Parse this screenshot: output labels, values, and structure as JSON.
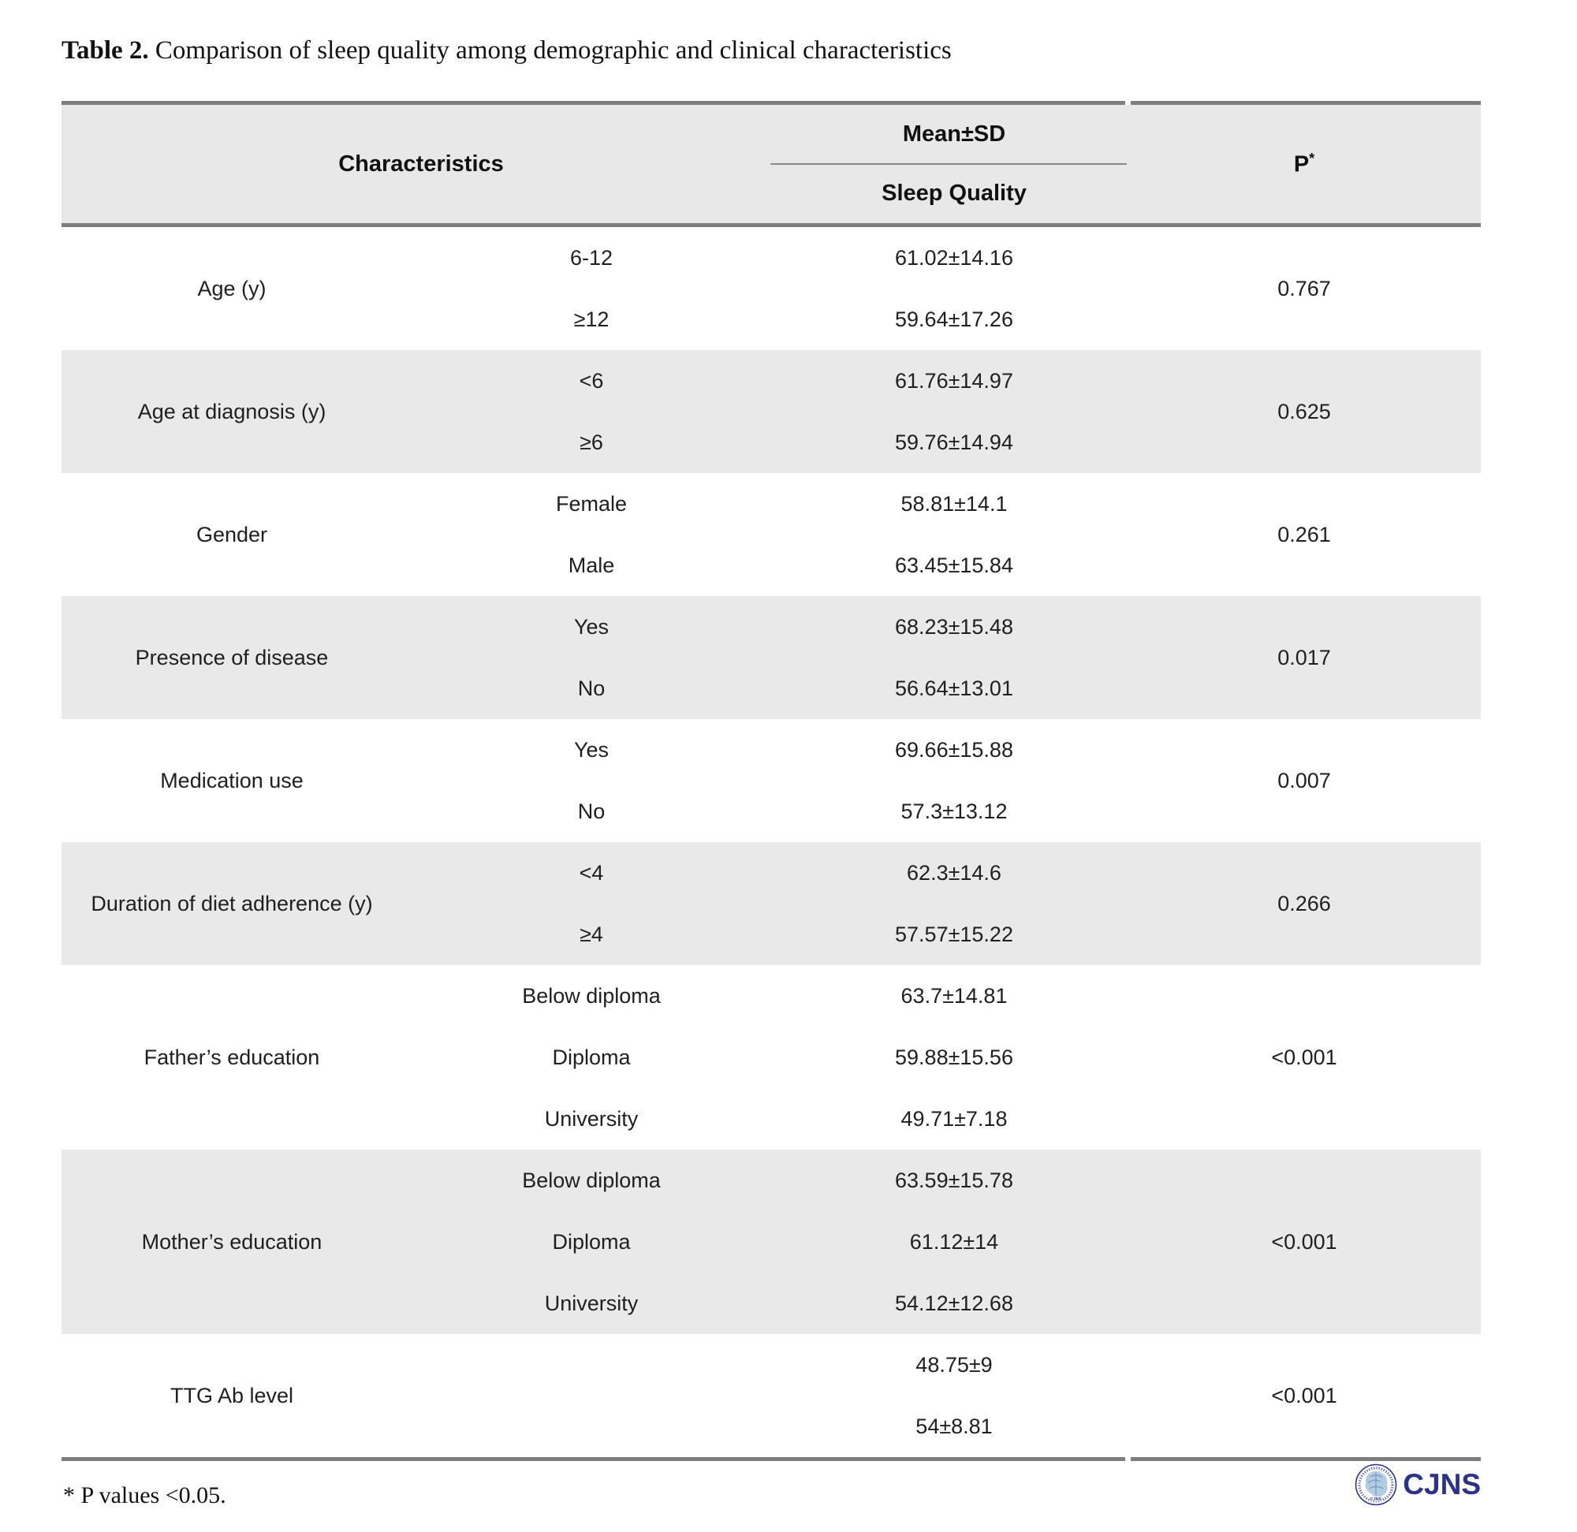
{
  "page": {
    "title_label": "Table 2.",
    "title_text": " Comparison of sleep quality among demographic and clinical characteristics",
    "footnote": "* P values <0.05."
  },
  "table": {
    "header": {
      "characteristics": "Characteristics",
      "mean_sd": "Mean±SD",
      "mean_sub": "Sleep Quality",
      "p": "P",
      "p_superscript": "*"
    },
    "groups": [
      {
        "name": "Age (y)",
        "shaded": false,
        "p": "0.767",
        "rows": [
          {
            "level": "6-12",
            "mean": "61.02±14.16"
          },
          {
            "level": "≥12",
            "mean": "59.64±17.26"
          }
        ]
      },
      {
        "name": "Age at diagnosis (y)",
        "shaded": true,
        "p": "0.625",
        "rows": [
          {
            "level": "<6",
            "mean": "61.76±14.97"
          },
          {
            "level": "≥6",
            "mean": "59.76±14.94"
          }
        ]
      },
      {
        "name": "Gender",
        "shaded": false,
        "p": "0.261",
        "rows": [
          {
            "level": "Female",
            "mean": "58.81±14.1"
          },
          {
            "level": "Male",
            "mean": "63.45±15.84"
          }
        ]
      },
      {
        "name": "Presence of disease",
        "shaded": true,
        "p": "0.017",
        "rows": [
          {
            "level": "Yes",
            "mean": "68.23±15.48"
          },
          {
            "level": "No",
            "mean": "56.64±13.01"
          }
        ]
      },
      {
        "name": "Medication use",
        "shaded": false,
        "p": "0.007",
        "rows": [
          {
            "level": "Yes",
            "mean": "69.66±15.88"
          },
          {
            "level": "No",
            "mean": "57.3±13.12"
          }
        ]
      },
      {
        "name": "Duration of diet adherence (y)",
        "shaded": true,
        "p": "0.266",
        "rows": [
          {
            "level": "<4",
            "mean": "62.3±14.6"
          },
          {
            "level": "≥4",
            "mean": "57.57±15.22"
          }
        ]
      },
      {
        "name": "Father’s education",
        "shaded": false,
        "p": "<0.001",
        "rows": [
          {
            "level": "Below diploma",
            "mean": "63.7±14.81"
          },
          {
            "level": "Diploma",
            "mean": "59.88±15.56"
          },
          {
            "level": "University",
            "mean": "49.71±7.18"
          }
        ]
      },
      {
        "name": "Mother’s education",
        "shaded": true,
        "p": "<0.001",
        "rows": [
          {
            "level": "Below diploma",
            "mean": "63.59±15.78"
          },
          {
            "level": "Diploma",
            "mean": "61.12±14"
          },
          {
            "level": "University",
            "mean": "54.12±12.68"
          }
        ]
      },
      {
        "name": "TTG Ab level",
        "shaded": false,
        "p": "<0.001",
        "rows": [
          {
            "level": "",
            "mean": "48.75±9"
          },
          {
            "level": "",
            "mean": "54±8.81"
          }
        ]
      }
    ]
  },
  "logo": {
    "journal_abbrev": "CJNS"
  },
  "colors": {
    "header_bg": "#e8e8e8",
    "shaded_row": "#e9e9e9",
    "border": "#7d7d7d",
    "logo_navy": "#2b3288"
  }
}
